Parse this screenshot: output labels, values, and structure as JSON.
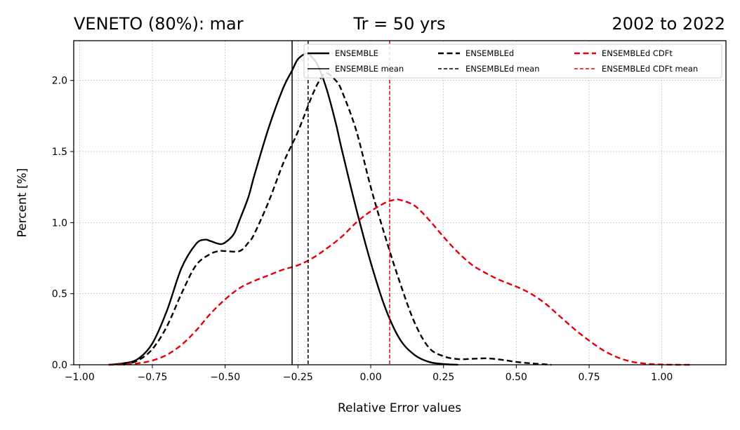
{
  "chart_data": {
    "type": "line",
    "title_left": "VENETO (80%): mar",
    "title_center": "Tr = 50 yrs",
    "title_right": "2002 to 2022",
    "xlabel": "Relative Error values",
    "ylabel": "Percent [%]",
    "xlim": [
      -1.02,
      1.22
    ],
    "ylim": [
      0,
      2.28
    ],
    "xticks": [
      -1.0,
      -0.75,
      -0.5,
      -0.25,
      0.0,
      0.25,
      0.5,
      0.75,
      1.0
    ],
    "xtick_labels": [
      "−1.00",
      "−0.75",
      "−0.50",
      "−0.25",
      "0.00",
      "0.25",
      "0.50",
      "0.75",
      "1.00"
    ],
    "yticks": [
      0.0,
      0.5,
      1.0,
      1.5,
      2.0
    ],
    "ytick_labels": [
      "0.0",
      "0.5",
      "1.0",
      "1.5",
      "2.0"
    ],
    "grid": true,
    "legend": {
      "position": "top-right",
      "columns": 3,
      "entries": [
        "ENSEMBLE",
        "ENSEMBLE mean",
        "ENSEMBLEd",
        "ENSEMBLEd mean",
        "ENSEMBLEd CDFt",
        "ENSEMBLEd CDFt mean"
      ]
    },
    "series": [
      {
        "name": "ENSEMBLE",
        "color": "#000000",
        "style": "solid",
        "x": [
          -0.9,
          -0.85,
          -0.8,
          -0.75,
          -0.7,
          -0.65,
          -0.6,
          -0.57,
          -0.55,
          -0.52,
          -0.5,
          -0.47,
          -0.45,
          -0.42,
          -0.4,
          -0.35,
          -0.3,
          -0.27,
          -0.25,
          -0.22,
          -0.2,
          -0.18,
          -0.15,
          -0.12,
          -0.1,
          -0.05,
          0.0,
          0.05,
          0.1,
          0.15,
          0.2,
          0.25,
          0.3
        ],
        "y": [
          0.0,
          0.01,
          0.04,
          0.15,
          0.38,
          0.68,
          0.85,
          0.88,
          0.87,
          0.85,
          0.86,
          0.92,
          1.02,
          1.18,
          1.33,
          1.67,
          1.95,
          2.07,
          2.15,
          2.19,
          2.16,
          2.1,
          1.93,
          1.7,
          1.52,
          1.1,
          0.72,
          0.4,
          0.18,
          0.07,
          0.02,
          0.005,
          0.0
        ]
      },
      {
        "name": "ENSEMBLEd",
        "color": "#000000",
        "style": "dashed",
        "x": [
          -0.85,
          -0.8,
          -0.75,
          -0.7,
          -0.65,
          -0.6,
          -0.55,
          -0.52,
          -0.5,
          -0.45,
          -0.42,
          -0.4,
          -0.35,
          -0.3,
          -0.25,
          -0.2,
          -0.17,
          -0.15,
          -0.12,
          -0.1,
          -0.05,
          0.0,
          0.05,
          0.1,
          0.15,
          0.2,
          0.25,
          0.3,
          0.35,
          0.4,
          0.45,
          0.5,
          0.55,
          0.6,
          0.62
        ],
        "y": [
          0.0,
          0.03,
          0.11,
          0.27,
          0.5,
          0.7,
          0.78,
          0.8,
          0.8,
          0.8,
          0.86,
          0.92,
          1.15,
          1.42,
          1.64,
          1.9,
          2.02,
          2.05,
          2.0,
          1.93,
          1.65,
          1.25,
          0.9,
          0.58,
          0.3,
          0.12,
          0.06,
          0.04,
          0.042,
          0.045,
          0.035,
          0.02,
          0.01,
          0.003,
          0.0
        ]
      },
      {
        "name": "ENSEMBLEd CDFt",
        "color": "#e6000b",
        "style": "dashed",
        "x": [
          -0.9,
          -0.85,
          -0.8,
          -0.75,
          -0.7,
          -0.65,
          -0.6,
          -0.55,
          -0.5,
          -0.45,
          -0.4,
          -0.35,
          -0.3,
          -0.25,
          -0.2,
          -0.15,
          -0.1,
          -0.05,
          0.0,
          0.05,
          0.08,
          0.1,
          0.15,
          0.2,
          0.25,
          0.3,
          0.35,
          0.4,
          0.45,
          0.5,
          0.55,
          0.6,
          0.65,
          0.7,
          0.75,
          0.8,
          0.85,
          0.9,
          0.95,
          1.0,
          1.05,
          1.1
        ],
        "y": [
          0.0,
          0.003,
          0.01,
          0.03,
          0.07,
          0.14,
          0.24,
          0.36,
          0.46,
          0.54,
          0.59,
          0.63,
          0.67,
          0.7,
          0.75,
          0.82,
          0.9,
          1.0,
          1.08,
          1.14,
          1.16,
          1.16,
          1.12,
          1.02,
          0.9,
          0.79,
          0.7,
          0.64,
          0.59,
          0.55,
          0.5,
          0.43,
          0.34,
          0.25,
          0.17,
          0.1,
          0.05,
          0.02,
          0.007,
          0.002,
          0.0,
          0.0
        ]
      }
    ],
    "mean_lines": [
      {
        "name": "ENSEMBLE mean",
        "x": -0.27,
        "color": "#000000",
        "style": "solid"
      },
      {
        "name": "ENSEMBLEd mean",
        "x": -0.215,
        "color": "#000000",
        "style": "dashed"
      },
      {
        "name": "ENSEMBLEd CDFt mean",
        "x": 0.065,
        "color": "#e6000b",
        "style": "dashed"
      }
    ]
  }
}
